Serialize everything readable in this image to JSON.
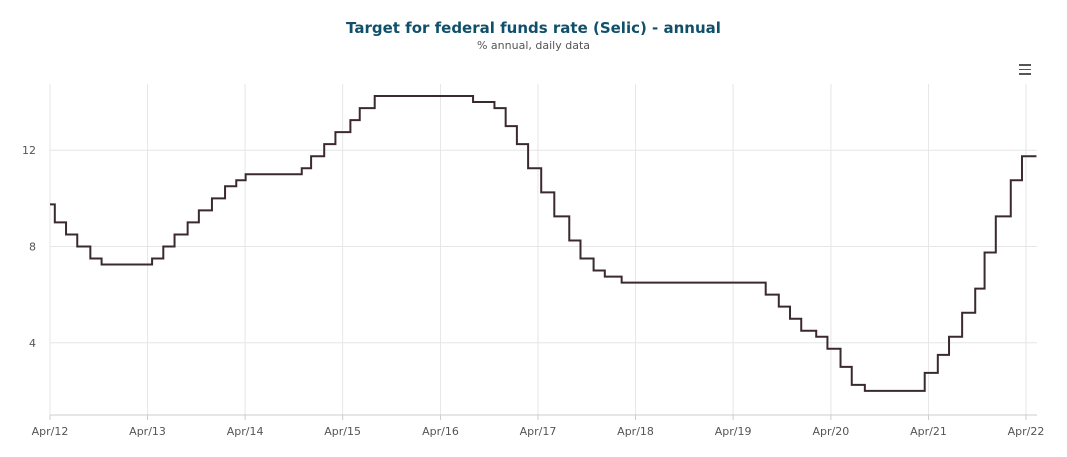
{
  "header": {
    "title": "Target for federal funds rate (Selic) - annual",
    "subtitle": "% annual, daily data"
  },
  "colors": {
    "title": "#10506a",
    "line": "#3a2a30",
    "grid": "#e6e6e6",
    "axis": "#cccccc"
  },
  "toolbar": {
    "menu_icon": "hamburger-menu-icon"
  },
  "chart_data": {
    "type": "line",
    "title": "Target for federal funds rate (Selic) - annual",
    "subtitle": "% annual, daily data",
    "xlabel": "",
    "ylabel": "",
    "x_ticks": [
      "Apr/12",
      "Apr/13",
      "Apr/14",
      "Apr/15",
      "Apr/16",
      "Apr/17",
      "Apr/18",
      "Apr/19",
      "Apr/20",
      "Apr/21",
      "Apr/22"
    ],
    "y_ticks": [
      4,
      8,
      12
    ],
    "xlim": [
      "2012-04-01",
      "2022-05-10"
    ],
    "ylim": [
      1.0,
      14.75
    ],
    "grid": true,
    "step": true,
    "series": [
      {
        "x": [
          "2012-04-01",
          "2012-04-19",
          "2012-05-31",
          "2012-07-12",
          "2012-08-30",
          "2012-10-11",
          "2013-04-18",
          "2013-05-30",
          "2013-07-11",
          "2013-08-29",
          "2013-10-10",
          "2013-11-28",
          "2014-01-16",
          "2014-02-27",
          "2014-04-03",
          "2014-10-30",
          "2014-12-04",
          "2015-01-22",
          "2015-03-05",
          "2015-04-30",
          "2015-06-04",
          "2015-07-30",
          "2016-08-01",
          "2016-10-20",
          "2016-12-01",
          "2017-01-12",
          "2017-02-23",
          "2017-04-13",
          "2017-06-01",
          "2017-07-27",
          "2017-09-07",
          "2017-10-26",
          "2017-12-07",
          "2018-02-08",
          "2018-03-22",
          "2019-08-01",
          "2019-09-19",
          "2019-10-31",
          "2019-12-12",
          "2020-02-06",
          "2020-03-19",
          "2020-05-07",
          "2020-06-18",
          "2020-08-06",
          "2021-03-18",
          "2021-05-06",
          "2021-06-17",
          "2021-08-05",
          "2021-09-23",
          "2021-10-28",
          "2021-12-09",
          "2022-02-03",
          "2022-03-17",
          "2022-05-10"
        ],
        "values": [
          9.75,
          9.0,
          8.5,
          8.0,
          7.5,
          7.25,
          7.5,
          8.0,
          8.5,
          9.0,
          9.5,
          10.0,
          10.5,
          10.75,
          11.0,
          11.25,
          11.75,
          12.25,
          12.75,
          13.25,
          13.75,
          14.25,
          14.0,
          13.75,
          13.0,
          12.25,
          11.25,
          10.25,
          9.25,
          8.25,
          7.5,
          7.0,
          6.75,
          6.5,
          6.5,
          6.0,
          5.5,
          5.0,
          4.5,
          4.25,
          3.75,
          3.0,
          2.25,
          2.0,
          2.75,
          3.5,
          4.25,
          5.25,
          6.25,
          7.75,
          9.25,
          10.75,
          11.75,
          11.75
        ]
      }
    ]
  }
}
